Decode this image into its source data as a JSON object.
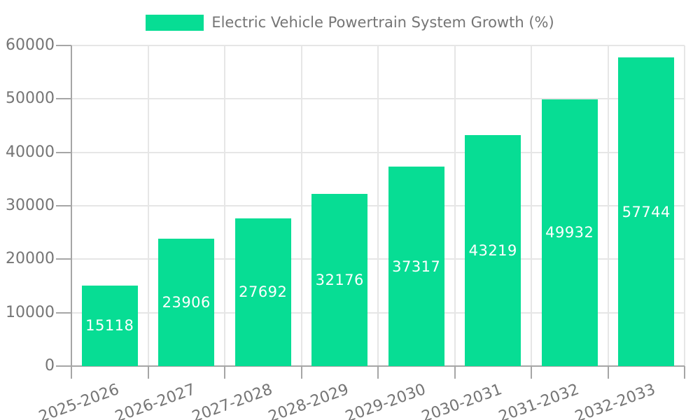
{
  "legend": {
    "label": "Electric Vehicle Powertrain System Growth (%)"
  },
  "chart_data": {
    "type": "bar",
    "title": "Electric Vehicle Powertrain System Growth (%)",
    "categories": [
      "2025-2026",
      "2026-2027",
      "2027-2028",
      "2028-2029",
      "2029-2030",
      "2030-2031",
      "2031-2032",
      "2032-2033"
    ],
    "values": [
      15118,
      23906,
      27692,
      32176,
      37317,
      43219,
      49932,
      57744
    ],
    "xlabel": "",
    "ylabel": "",
    "ylim": [
      0,
      60000
    ],
    "yticks": [
      0,
      10000,
      20000,
      30000,
      40000,
      50000,
      60000
    ],
    "grid": true,
    "legend_position": "top",
    "value_label_position": "inside-center"
  },
  "colors": {
    "bar": "#07DD94",
    "axis_text": "#757575",
    "value_text": "#ffffff",
    "grid_line": "#e6e6e6",
    "axis_line": "#a6a6a6",
    "background": "#ffffff"
  }
}
